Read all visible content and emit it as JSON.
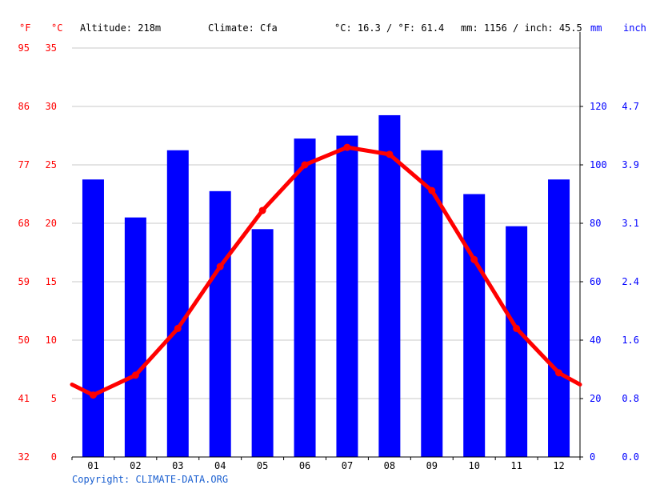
{
  "header": {
    "unit_f": "°F",
    "unit_c": "°C",
    "altitude": "Altitude: 218m",
    "climate": "Climate: Cfa",
    "avg_temp": "°C: 16.3 / °F: 61.4",
    "precip_total": "mm: 1156 / inch: 45.5",
    "unit_mm": "mm",
    "unit_inch": "inch"
  },
  "copyright": "Copyright: CLIMATE-DATA.ORG",
  "colors": {
    "temperature": "#ff0000",
    "precipitation": "#0000ff",
    "grid": "#c8c8c8",
    "axis": "#000000"
  },
  "chart_data": {
    "type": "bar",
    "categories": [
      "01",
      "02",
      "03",
      "04",
      "05",
      "06",
      "07",
      "08",
      "09",
      "10",
      "11",
      "12"
    ],
    "series": [
      {
        "kind": "bar",
        "axis": "right",
        "values": [
          95,
          82,
          105,
          91,
          78,
          109,
          110,
          117,
          105,
          90,
          79,
          95
        ]
      },
      {
        "kind": "line",
        "axis": "left",
        "values": [
          5.3,
          7.0,
          11.0,
          16.3,
          21.1,
          25.0,
          26.5,
          25.9,
          22.8,
          16.9,
          11.0,
          7.2
        ]
      }
    ],
    "line_edge_values": {
      "start": 6.2,
      "end": 6.2
    },
    "left_axis_c": {
      "ticks": [
        0,
        5,
        10,
        15,
        20,
        25,
        30,
        35
      ],
      "range": [
        0,
        35
      ]
    },
    "left_axis_f": {
      "ticks": [
        "32",
        "41",
        "50",
        "59",
        "68",
        "77",
        "86",
        "95"
      ]
    },
    "right_axis_mm": {
      "ticks": [
        "0",
        "20",
        "40",
        "60",
        "80",
        "100",
        "120"
      ],
      "range": [
        0,
        140
      ]
    },
    "right_axis_inch": {
      "ticks": [
        "0.0",
        "0.8",
        "1.6",
        "2.4",
        "3.1",
        "3.9",
        "4.7"
      ]
    },
    "grid": true
  }
}
